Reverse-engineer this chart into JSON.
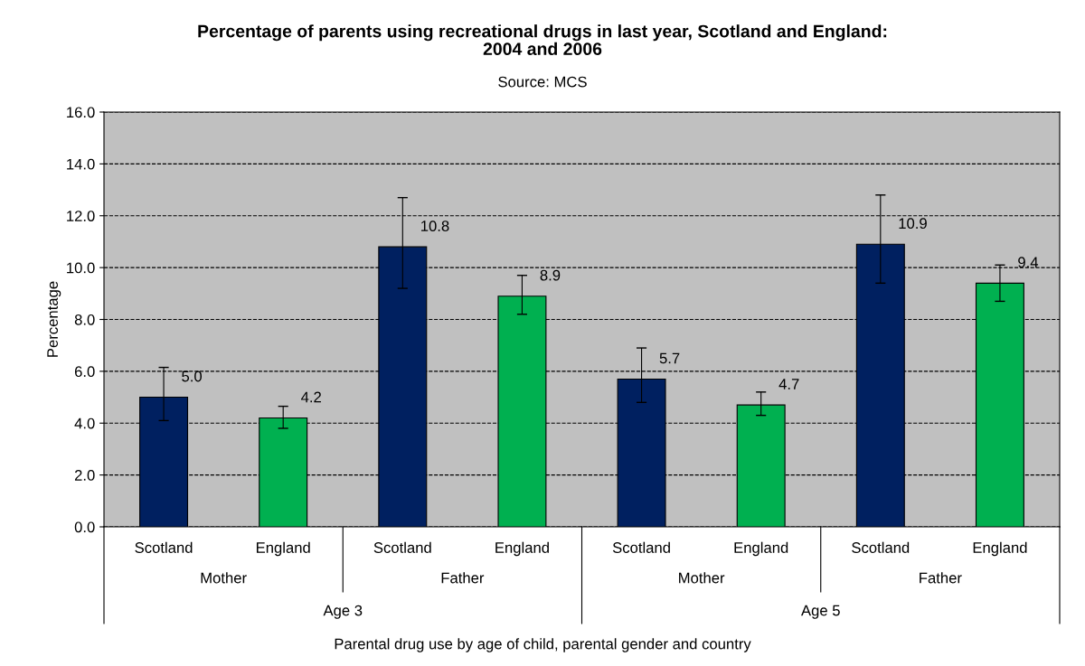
{
  "chart_data": {
    "type": "bar",
    "title": "Percentage of parents using recreational drugs in last year, Scotland and England:\n2004 and 2006",
    "subtitle": "Source: MCS",
    "ylabel": "Percentage",
    "categories": [
      "Scotland",
      "England",
      "Scotland",
      "England",
      "Scotland",
      "England",
      "Scotland",
      "England"
    ],
    "values": [
      5.0,
      4.2,
      10.8,
      8.9,
      5.7,
      4.7,
      10.9,
      9.4
    ],
    "colors": [
      "#002060",
      "#00b050",
      "#002060",
      "#00b050",
      "#002060",
      "#00b050",
      "#002060",
      "#00b050"
    ],
    "errors": [
      [
        4.1,
        6.15
      ],
      [
        3.8,
        4.65
      ],
      [
        9.2,
        12.7
      ],
      [
        8.2,
        9.7
      ],
      [
        4.8,
        6.9
      ],
      [
        4.3,
        5.2
      ],
      [
        9.4,
        12.8
      ],
      [
        8.7,
        10.1
      ]
    ],
    "value_labels": [
      "5.0",
      "4.2",
      "10.8",
      "8.9",
      "5.7",
      "4.7",
      "10.9",
      "9.4"
    ],
    "annotations": [
      "Mother",
      "Father",
      "Mother",
      "Father",
      "Age 3",
      "Age 5",
      "Parental drug use by age of child, parental gender and country"
    ],
    "ylim": [
      0,
      16
    ],
    "yticks": [
      {
        "value": 0,
        "label": "0.0"
      },
      {
        "value": 2,
        "label": "2.0"
      },
      {
        "value": 4,
        "label": "4.0"
      },
      {
        "value": 6,
        "label": "6.0"
      },
      {
        "value": 8,
        "label": "8.0"
      },
      {
        "value": 10,
        "label": "10.0"
      },
      {
        "value": 12,
        "label": "12.0"
      },
      {
        "value": 14,
        "label": "14.0"
      },
      {
        "value": 16,
        "label": "16.0"
      }
    ],
    "grid": "y",
    "line_style": "dashed"
  }
}
